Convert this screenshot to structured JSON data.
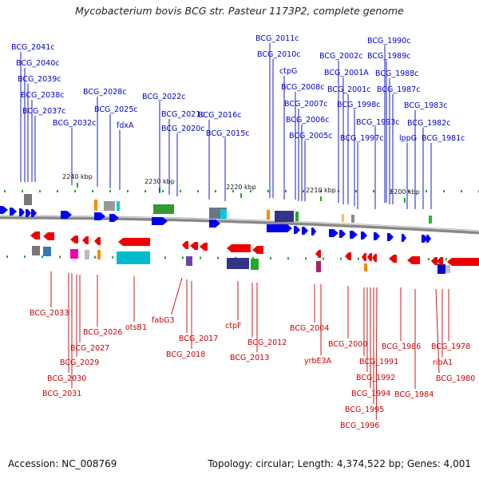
{
  "title": "Mycobacterium bovis BCG str. Pasteur 1173P2, complete genome",
  "footer": {
    "accession": "Accession: NC_008769",
    "summary": "Topology: circular; Length: 4,374,522 bp; Genes: 4,001"
  },
  "colors": {
    "forward_gene": "#0000ee",
    "reverse_gene": "#ee0000",
    "forward_label": "#0000cc",
    "reverse_label": "#cc0000",
    "backbone": "#888888",
    "tick": "#22aa22"
  },
  "ticks": [
    {
      "label": "2240 kbp"
    },
    {
      "label": "2230 kbp"
    },
    {
      "label": "2220 kbp"
    },
    {
      "label": "2210 kbp"
    },
    {
      "label": "2200 kbp"
    }
  ],
  "forward_labels": [
    "BCG_2041c",
    "BCG_2040c",
    "BCG_2039c",
    "BCG_2038c",
    "BCG_2037c",
    "BCG_2032c",
    "BCG_2028c",
    "BCG_2025c",
    "fdxA",
    "BCG_2022c",
    "BCG_2021c",
    "BCG_2020c",
    "BCG_2016c",
    "BCG_2015c",
    "BCG_2011c",
    "BCG_2010c",
    "ctpG",
    "BCG_2008c",
    "BCG_2007c",
    "BCG_2006c",
    "BCG_2005c",
    "BCG_2002c",
    "BCG_2001A",
    "BCG_2001c",
    "BCG_1998c",
    "BCG_1997c",
    "BCG_1993c",
    "BCG_1990c",
    "BCG_1989c",
    "BCG_1988c",
    "BCG_1987c",
    "lppG",
    "BCG_1983c",
    "BCG_1982c",
    "BCG_1981c"
  ],
  "reverse_labels": [
    "BCG_2033",
    "BCG_2030",
    "BCG_2031",
    "BCG_2029",
    "BCG_2027",
    "BCG_2026",
    "otsB1",
    "fabG3",
    "BCG_2017",
    "BCG_2018",
    "ctpF",
    "BCG_2012",
    "BCG_2013",
    "BCG_2004",
    "yrbE3A",
    "BCG_2000",
    "BCG_1991",
    "BCG_1992",
    "BCG_1994",
    "BCG_1995",
    "BCG_1996",
    "BCG_1986",
    "BCG_1984",
    "BCG_1978",
    "ribA1",
    "BCG_1980"
  ]
}
